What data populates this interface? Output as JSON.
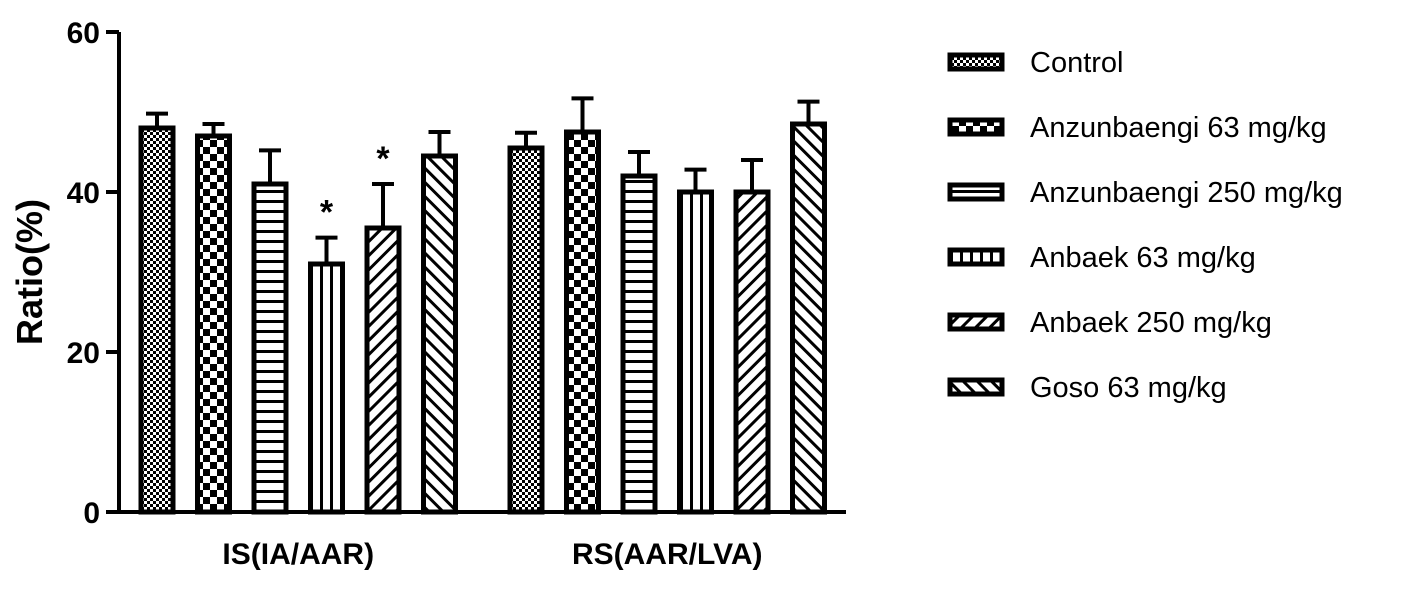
{
  "chart_data": {
    "type": "bar",
    "title": "",
    "ylabel": "Ratio(%)",
    "xlabel": "",
    "ylim": [
      0,
      60
    ],
    "yticks": [
      "0",
      "20",
      "40",
      "60"
    ],
    "grid": false,
    "legend_position": "right",
    "categories": [
      "IS(IA/AAR)",
      "RS(AAR/LVA)"
    ],
    "series": [
      {
        "name": "Control",
        "values": [
          48,
          45.5
        ],
        "errors": [
          1.8,
          1.9
        ],
        "pattern": "fine-check",
        "significance": [
          "",
          ""
        ]
      },
      {
        "name": "Anzunbaengi 63 mg/kg",
        "values": [
          47,
          47.5
        ],
        "errors": [
          1.5,
          4.2
        ],
        "pattern": "checkerboard",
        "significance": [
          "",
          ""
        ]
      },
      {
        "name": "Anzunbaengi 250 mg/kg",
        "values": [
          41,
          42
        ],
        "errors": [
          4.2,
          3
        ],
        "pattern": "horizontal",
        "significance": [
          "",
          ""
        ]
      },
      {
        "name": "Anbaek 63 mg/kg",
        "values": [
          31,
          40
        ],
        "errors": [
          3.3,
          2.8
        ],
        "pattern": "vertical",
        "significance": [
          "*",
          ""
        ]
      },
      {
        "name": "Anbaek 250 mg/kg",
        "values": [
          35.5,
          40
        ],
        "errors": [
          5.5,
          4
        ],
        "pattern": "diag-right",
        "significance": [
          "*",
          ""
        ]
      },
      {
        "name": "Goso 63 mg/kg",
        "values": [
          44.5,
          48.5
        ],
        "errors": [
          3,
          2.8
        ],
        "pattern": "diag-left",
        "significance": [
          "",
          ""
        ]
      }
    ]
  }
}
